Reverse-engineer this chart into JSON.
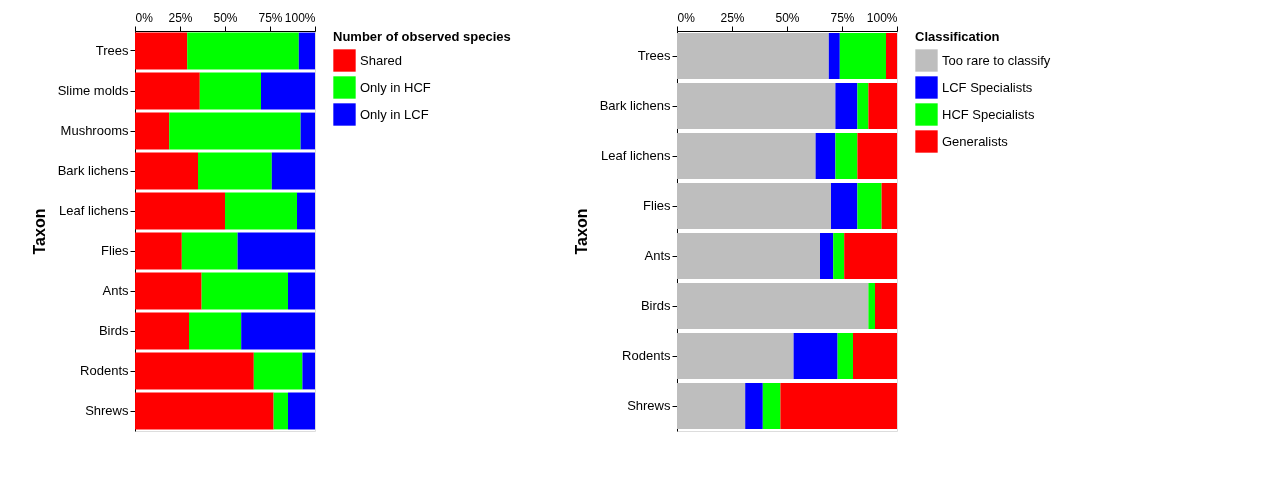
{
  "chart_data": [
    {
      "type": "bar",
      "orientation": "horizontal",
      "stacked": true,
      "ylabel": "Taxon",
      "legend_title": "Number of observed species",
      "legend": "right",
      "grid": false,
      "categories": [
        "Trees",
        "Slime molds",
        "Mushrooms",
        "Bark lichens",
        "Leaf lichens",
        "Flies",
        "Ants",
        "Birds",
        "Rodents",
        "Shrews"
      ],
      "xlim": [
        0,
        100
      ],
      "xticks": [
        {
          "value": 0,
          "label": "0%"
        },
        {
          "value": 25,
          "label": "25%"
        },
        {
          "value": 50,
          "label": "50%"
        },
        {
          "value": 75,
          "label": "75%"
        },
        {
          "value": 100,
          "label": "100%"
        }
      ],
      "series": [
        {
          "name": "Shared",
          "color": "#ff0000",
          "values": [
            29,
            36,
            19,
            35,
            50,
            26,
            37,
            30,
            66,
            77
          ]
        },
        {
          "name": "Only in HCF",
          "color": "#00ff00",
          "values": [
            62,
            34,
            73,
            41,
            40,
            31,
            48,
            29,
            27,
            8
          ]
        },
        {
          "name": "Only in LCF",
          "color": "#0000ff",
          "values": [
            9,
            30,
            8,
            24,
            10,
            43,
            15,
            41,
            7,
            15
          ]
        }
      ]
    },
    {
      "type": "bar",
      "orientation": "horizontal",
      "stacked": true,
      "ylabel": "Taxon",
      "legend_title": "Classification",
      "legend": "right",
      "grid": false,
      "categories": [
        "Trees",
        "Bark lichens",
        "Leaf lichens",
        "Flies",
        "Ants",
        "Birds",
        "Rodents",
        "Shrews"
      ],
      "xlim": [
        0,
        100
      ],
      "xticks": [
        {
          "value": 0,
          "label": "0%"
        },
        {
          "value": 25,
          "label": "25%"
        },
        {
          "value": 50,
          "label": "50%"
        },
        {
          "value": 75,
          "label": "75%"
        },
        {
          "value": 100,
          "label": "100%"
        }
      ],
      "series": [
        {
          "name": "Too rare to classify",
          "color": "#bebebe",
          "values": [
            69,
            72,
            63,
            70,
            65,
            87,
            53,
            31
          ]
        },
        {
          "name": "LCF Specialists",
          "color": "#0000ff",
          "values": [
            5,
            10,
            9,
            12,
            6,
            0,
            20,
            8
          ]
        },
        {
          "name": "HCF Specialists",
          "color": "#00ff00",
          "values": [
            21,
            5,
            10,
            11,
            5,
            3,
            7,
            8
          ]
        },
        {
          "name": "Generalists",
          "color": "#ff0000",
          "values": [
            5,
            13,
            18,
            7,
            24,
            10,
            20,
            53
          ]
        }
      ]
    }
  ]
}
